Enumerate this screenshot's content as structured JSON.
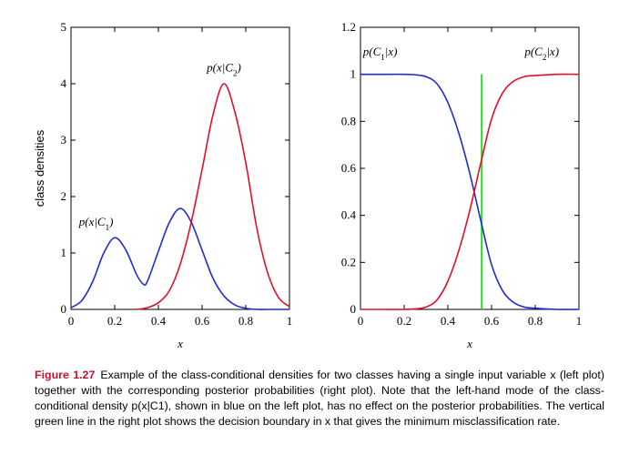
{
  "chart_data": [
    {
      "type": "line",
      "panel": "left",
      "ylabel": "class densities",
      "xlabel": "x",
      "xlim": [
        0,
        1
      ],
      "ylim": [
        0,
        5
      ],
      "xticks": [
        "0",
        "0.2",
        "0.4",
        "0.6",
        "0.8",
        "1"
      ],
      "yticks": [
        "0",
        "1",
        "2",
        "3",
        "4",
        "5"
      ],
      "series": [
        {
          "name": "p(x|C1)",
          "color": "#1f2bd6",
          "x": [
            0,
            0.05,
            0.1,
            0.15,
            0.2,
            0.25,
            0.3,
            0.33,
            0.35,
            0.4,
            0.45,
            0.5,
            0.55,
            0.6,
            0.65,
            0.7,
            0.75,
            0.8,
            0.85,
            0.9,
            0.95,
            1.0
          ],
          "values": [
            0.03,
            0.16,
            0.5,
            1.0,
            1.27,
            1.06,
            0.62,
            0.45,
            0.5,
            1.03,
            1.54,
            1.79,
            1.55,
            1.05,
            0.55,
            0.24,
            0.08,
            0.02,
            0.0,
            0.0,
            0.0,
            0.0
          ]
        },
        {
          "name": "p(x|C2)",
          "color": "#e0102a",
          "x": [
            0.3,
            0.35,
            0.4,
            0.45,
            0.5,
            0.55,
            0.6,
            0.65,
            0.7,
            0.75,
            0.8,
            0.85,
            0.9,
            0.95,
            1.0
          ],
          "values": [
            0.0,
            0.03,
            0.12,
            0.33,
            0.8,
            1.54,
            2.48,
            3.45,
            4.0,
            3.5,
            2.6,
            1.45,
            0.65,
            0.21,
            0.05
          ]
        }
      ],
      "annotations": [
        "p(x|C1)",
        "p(x|C2)"
      ]
    },
    {
      "type": "line",
      "panel": "right",
      "xlabel": "x",
      "xlim": [
        0,
        1
      ],
      "ylim": [
        0,
        1.2
      ],
      "xticks": [
        "0",
        "0.2",
        "0.4",
        "0.6",
        "0.8",
        "1"
      ],
      "yticks": [
        "0",
        "0.2",
        "0.4",
        "0.6",
        "0.8",
        "1",
        "1.2"
      ],
      "series": [
        {
          "name": "p(C1|x)",
          "color": "#1f2bd6",
          "x": [
            0,
            0.1,
            0.2,
            0.25,
            0.3,
            0.35,
            0.4,
            0.45,
            0.5,
            0.55,
            0.6,
            0.65,
            0.7,
            0.75,
            0.8,
            0.9,
            1.0
          ],
          "values": [
            1.0,
            1.0,
            1.0,
            0.998,
            0.99,
            0.96,
            0.88,
            0.75,
            0.58,
            0.38,
            0.19,
            0.08,
            0.03,
            0.01,
            0.005,
            0.0,
            0.0
          ]
        },
        {
          "name": "p(C2|x)",
          "color": "#e0102a",
          "x": [
            0,
            0.1,
            0.2,
            0.25,
            0.3,
            0.35,
            0.4,
            0.45,
            0.5,
            0.55,
            0.6,
            0.65,
            0.7,
            0.75,
            0.8,
            0.9,
            1.0
          ],
          "values": [
            0.0,
            0.0,
            0.0,
            0.002,
            0.01,
            0.04,
            0.12,
            0.25,
            0.42,
            0.62,
            0.81,
            0.92,
            0.97,
            0.99,
            0.995,
            1.0,
            1.0
          ]
        }
      ],
      "decision_boundary": {
        "x": 0.555,
        "color": "#22dd22"
      },
      "annotations": [
        "p(C1|x)",
        "p(C2|x)"
      ]
    }
  ],
  "caption": {
    "figure_label": "Figure 1.27",
    "text": "Example of the class-conditional densities for two classes having a single input variable x (left plot) together with the corresponding posterior probabilities (right plot). Note that the left-hand mode of the class-conditional density p(x|C1), shown in blue on the left plot, has no effect on the posterior probabilities. The vertical green line in the right plot shows the decision boundary in x that gives the minimum misclassification rate."
  }
}
